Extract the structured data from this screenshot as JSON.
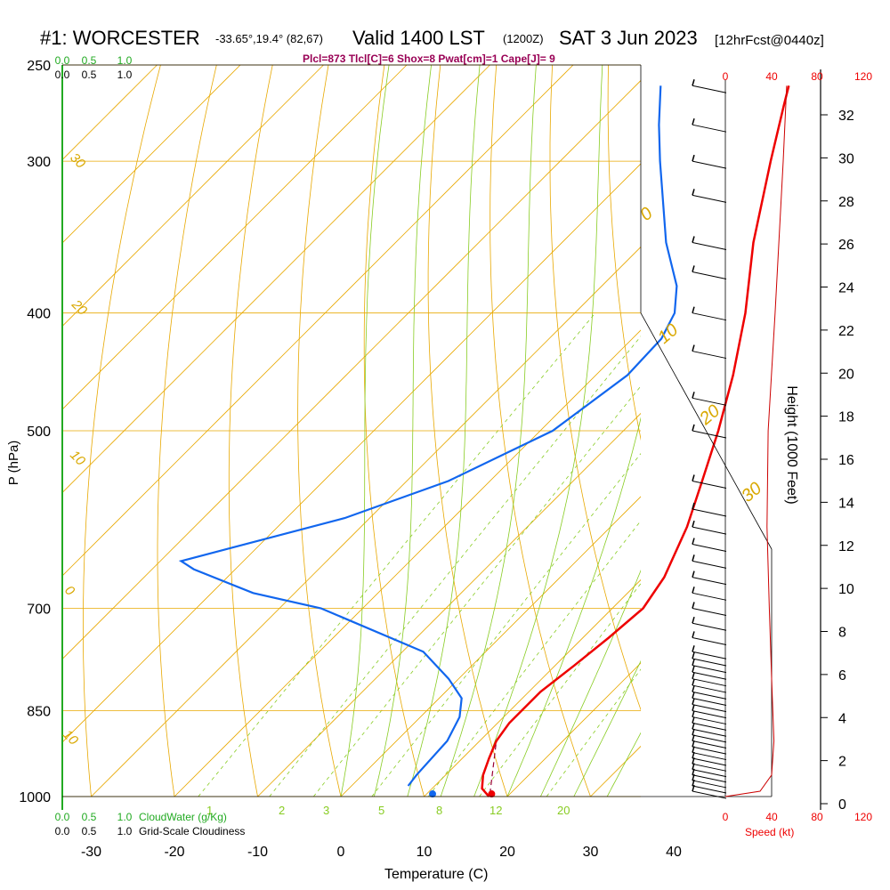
{
  "header": {
    "station": "#1: WORCESTER",
    "coords": "-33.65°,19.4° (82,67)",
    "valid": "Valid 1400 LST",
    "utc": "(1200Z)",
    "date": "SAT 3 Jun 2023",
    "forecast": "[12hrFcst@0440z]"
  },
  "stats_line": "Plcl=873 Tlcl[C]=6 Shox=8 Pwat[cm]=1 Cape[J]= 9",
  "colors": {
    "isotherm": "#e8a800",
    "dry_adiabat": "#e8a800",
    "moist_adiabat": "#88cc22",
    "mixing_ratio": "#88cc22",
    "temperature": "#ee0000",
    "dewpoint": "#1166ee",
    "cloud_water": "#22aa22",
    "wind_speed": "#cc0000"
  },
  "chart_data": {
    "type": "skew-t",
    "xlabel": "Temperature (C)",
    "ylabel": "P (hPa)",
    "x_ticks": [
      -30,
      -20,
      -10,
      0,
      10,
      20,
      30,
      40
    ],
    "pressure_ticks": [
      250,
      300,
      400,
      500,
      700,
      850,
      1000
    ],
    "height_ticks_kft": [
      0,
      2,
      4,
      6,
      8,
      10,
      12,
      14,
      16,
      18,
      20,
      22,
      24,
      26,
      28,
      30,
      32
    ],
    "height_axis_label": "Height (1000 Feet)",
    "isotherm_labels": [
      -30,
      -20,
      -10,
      0,
      10,
      20,
      30
    ],
    "mixing_ratio_labels": [
      "1",
      "2",
      "3",
      "5",
      "8",
      "12",
      "20"
    ],
    "cloud_top_ticks": [
      "0.0",
      "0.5",
      "1.0"
    ],
    "cloud_bottom_label": "CloudWater (g/Kg)",
    "cloudiness_ticks": [
      "0.0",
      "0.5",
      "1.0"
    ],
    "cloudiness_label": "Grid-Scale Cloudiness",
    "speed_ticks": [
      "0",
      "40",
      "80",
      "120"
    ],
    "speed_label": "Speed (kt)",
    "temperature_profile": [
      {
        "p": 1000,
        "t": 17.8
      },
      {
        "p": 985,
        "t": 16.0
      },
      {
        "p": 960,
        "t": 14.5
      },
      {
        "p": 930,
        "t": 13.2
      },
      {
        "p": 900,
        "t": 12.0
      },
      {
        "p": 870,
        "t": 11.4
      },
      {
        "p": 820,
        "t": 11.4
      },
      {
        "p": 780,
        "t": 12.3
      },
      {
        "p": 740,
        "t": 13.1
      },
      {
        "p": 700,
        "t": 13.7
      },
      {
        "p": 660,
        "t": 12.5
      },
      {
        "p": 600,
        "t": 9.2
      },
      {
        "p": 550,
        "t": 5.5
      },
      {
        "p": 500,
        "t": 1.4
      },
      {
        "p": 450,
        "t": -3.5
      },
      {
        "p": 400,
        "t": -9.5
      },
      {
        "p": 350,
        "t": -17.0
      },
      {
        "p": 300,
        "t": -24.7
      },
      {
        "p": 270,
        "t": -29.8
      },
      {
        "p": 260,
        "t": -31.6
      }
    ],
    "dewpoint_profile": [
      {
        "p": 980,
        "td": 6.8
      },
      {
        "p": 960,
        "td": 6.5
      },
      {
        "p": 900,
        "td": 6.1
      },
      {
        "p": 860,
        "td": 4.7
      },
      {
        "p": 830,
        "td": 2.7
      },
      {
        "p": 800,
        "td": -1.2
      },
      {
        "p": 760,
        "td": -7.5
      },
      {
        "p": 700,
        "td": -25.0
      },
      {
        "p": 680,
        "td": -35.0
      },
      {
        "p": 650,
        "td": -45.0
      },
      {
        "p": 640,
        "td": -47.5
      },
      {
        "p": 590,
        "td": -33.0
      },
      {
        "p": 550,
        "td": -25.0
      },
      {
        "p": 500,
        "td": -18.5
      },
      {
        "p": 450,
        "td": -16.2
      },
      {
        "p": 420,
        "td": -16.5
      },
      {
        "p": 400,
        "td": -18.0
      },
      {
        "p": 380,
        "td": -21.0
      },
      {
        "p": 350,
        "td": -27.5
      },
      {
        "p": 300,
        "td": -38.0
      },
      {
        "p": 280,
        "td": -42.5
      },
      {
        "p": 260,
        "td": -47.0
      }
    ],
    "surface": {
      "p": 995,
      "t": 17.8,
      "td": 10.7
    },
    "parcel_segment": [
      {
        "p": 995,
        "t": 17.6
      },
      {
        "p": 900,
        "t": 12.0
      }
    ]
  }
}
